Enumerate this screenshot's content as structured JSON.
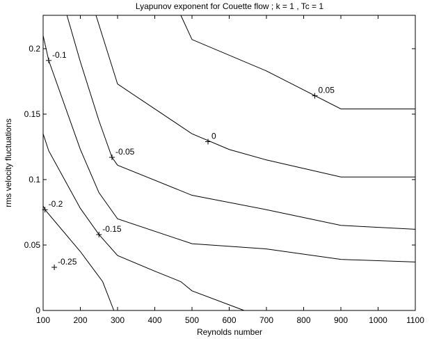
{
  "chart_data": {
    "type": "contour",
    "title": "Lyapunov exponent for Couette flow ;  k = 1 , Tc = 1",
    "xlabel": "Reynolds number",
    "ylabel": "rms velocity fluctuations",
    "xlim": [
      100,
      1100
    ],
    "xticks": [
      100,
      200,
      300,
      400,
      500,
      600,
      700,
      800,
      900,
      1000,
      1100
    ],
    "ylim": [
      0,
      0.2255
    ],
    "yticks": [
      0,
      0.05,
      0.1,
      0.15,
      0.2
    ],
    "color": "#000000",
    "series": [
      {
        "name": "0.05",
        "x": [
          470,
          500,
          700,
          900,
          1100
        ],
        "values": [
          0.2255,
          0.207,
          0.183,
          0.154,
          0.154
        ],
        "label_at": [
          830,
          0.164
        ]
      },
      {
        "name": "0",
        "x": [
          242,
          300,
          500,
          600,
          700,
          900,
          1100
        ],
        "values": [
          0.2255,
          0.173,
          0.135,
          0.123,
          0.115,
          0.102,
          0.102
        ],
        "label_at": [
          543,
          0.129
        ]
      },
      {
        "name": "-0.05",
        "x": [
          164,
          200,
          250,
          285,
          300,
          500,
          700,
          900,
          1100
        ],
        "values": [
          0.2255,
          0.19,
          0.145,
          0.117,
          0.111,
          0.088,
          0.077,
          0.065,
          0.062
        ],
        "label_at": [
          285,
          0.117
        ]
      },
      {
        "name": "-0.1",
        "x": [
          100,
          115,
          200,
          250,
          300,
          500,
          700,
          900,
          1100
        ],
        "values": [
          0.21,
          0.191,
          0.123,
          0.09,
          0.07,
          0.051,
          0.047,
          0.039,
          0.037
        ],
        "label_at": [
          115,
          0.191
        ]
      },
      {
        "name": "-0.15",
        "x": [
          100,
          115,
          200,
          250,
          300,
          400,
          470,
          500,
          640
        ],
        "values": [
          0.135,
          0.122,
          0.078,
          0.058,
          0.042,
          0.03,
          0.022,
          0.015,
          0
        ],
        "label_at": [
          250,
          0.058
        ]
      },
      {
        "name": "-0.2",
        "x": [
          100,
          105,
          200,
          260,
          290
        ],
        "values": [
          0.08,
          0.077,
          0.045,
          0.022,
          0
        ],
        "label_at": [
          105,
          0.077
        ]
      },
      {
        "name": "-0.25",
        "x": [
          130
        ],
        "values": [
          0.033
        ],
        "label_at": [
          130,
          0.033
        ]
      }
    ]
  }
}
